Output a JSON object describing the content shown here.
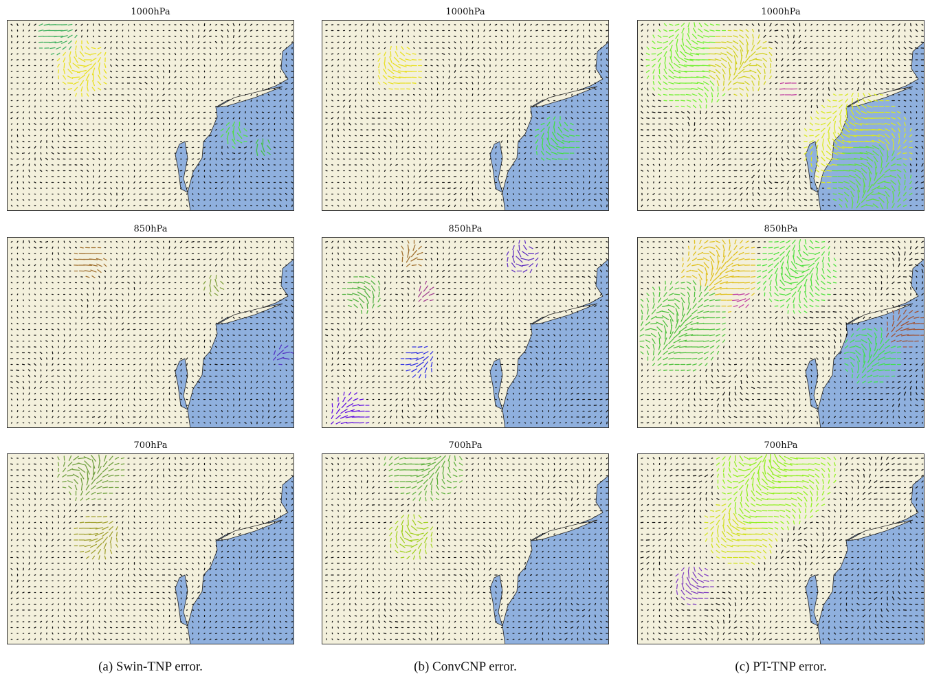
{
  "columns": [
    {
      "caption": "(a) Swin-TNP error.",
      "panels": [
        "1000hPa",
        "850hPa",
        "700hPa"
      ]
    },
    {
      "caption": "(b) ConvCNP error.",
      "panels": [
        "1000hPa",
        "850hPa",
        "700hPa"
      ]
    },
    {
      "caption": "(c) PT-TNP error.",
      "panels": [
        "1000hPa",
        "850hPa",
        "700hPa"
      ]
    }
  ],
  "colors": {
    "land": "#f3f0dc",
    "ocean": "#8fb0de",
    "coastline": "#222222",
    "arrow_low": "#111111"
  }
}
